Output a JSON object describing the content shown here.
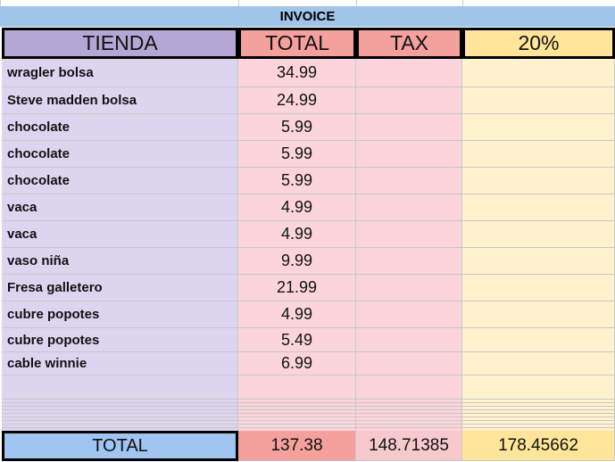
{
  "title": "INVOICE",
  "header": [
    "TIENDA",
    "TOTAL",
    "TAX",
    "20%"
  ],
  "rows": [
    [
      "wragler bolsa",
      34.99
    ],
    [
      "Steve madden bolsa",
      24.99
    ],
    [
      "chocolate",
      5.99
    ],
    [
      "chocolate",
      5.99
    ],
    [
      "chocolate",
      5.99
    ],
    [
      "vaca",
      4.99
    ],
    [
      "vaca",
      4.99
    ],
    [
      "vaso niña",
      9.99
    ],
    [
      "Fresa galletero",
      21.99
    ],
    [
      "cubre popotes",
      4.99
    ],
    [
      "cubre popotes",
      5.49
    ],
    [
      "cable winnie",
      6.99
    ]
  ],
  "totals": [
    "TOTAL",
    137.38,
    148.71385,
    178.45662
  ]
}
